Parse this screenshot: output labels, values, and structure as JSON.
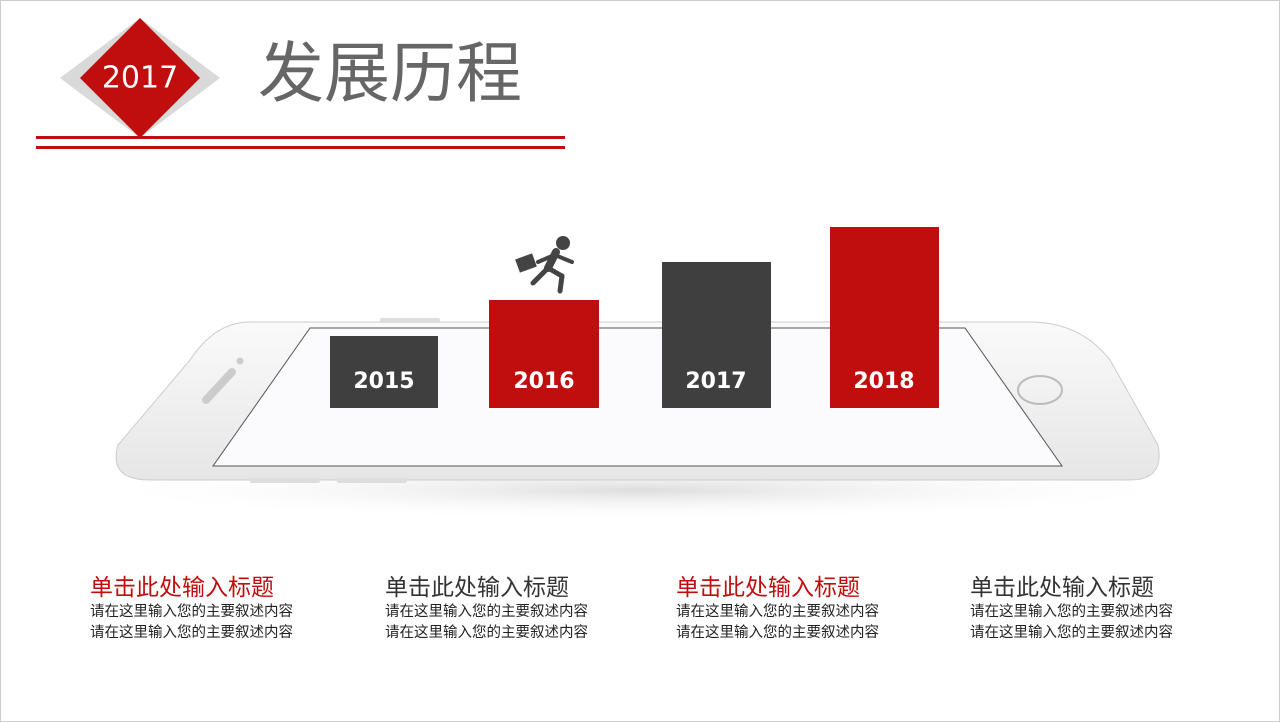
{
  "header": {
    "badge": "2017",
    "title": "发展历程"
  },
  "steps": [
    {
      "label": "2015"
    },
    {
      "label": "2016"
    },
    {
      "label": "2017"
    },
    {
      "label": "2018"
    }
  ],
  "items": [
    {
      "title": "单击此处输入标题",
      "lines": [
        "请在这里输入您的主要叙述内容",
        "请在这里输入您的主要叙述内容"
      ]
    },
    {
      "title": "单击此处输入标题",
      "lines": [
        "请在这里输入您的主要叙述内容",
        "请在这里输入您的主要叙述内容"
      ]
    },
    {
      "title": "单击此处输入标题",
      "lines": [
        "请在这里输入您的主要叙述内容",
        "请在这里输入您的主要叙述内容"
      ]
    },
    {
      "title": "单击此处输入标题",
      "lines": [
        "请在这里输入您的主要叙述内容",
        "请在这里输入您的主要叙述内容"
      ]
    }
  ]
}
